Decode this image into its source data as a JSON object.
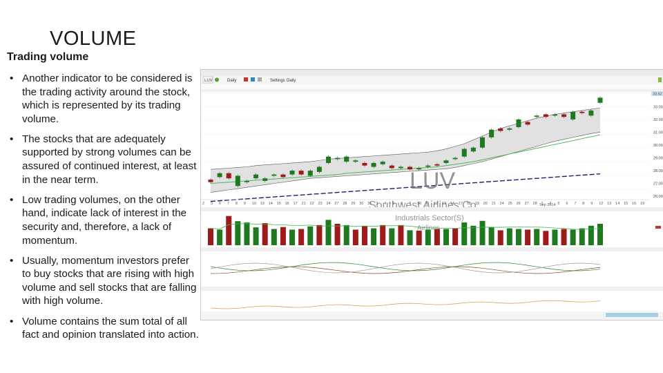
{
  "slide": {
    "title": "VOLUME",
    "subtitle": "Trading volume",
    "bullets": [
      "Another indicator to be considered is the trading activity around the stock, which is represented by its trading volume.",
      "The stocks that are adequately supported by strong volumes can be assured of continued interest, at least in the near term.",
      "Low trading volumes, on the other hand, indicate lack of interest in the security and, therefore, a lack of momentum.",
      "Usually, momentum investors prefer to buy stocks that are rising with high volume and sell stocks that are falling with high volume.",
      "Volume contains the sum total of all fact and opinion translated into action."
    ],
    "bullet_glyph": "•"
  },
  "screenshot": {
    "toolbar": {
      "symbol": "LUV",
      "period": "Daily",
      "settings_label": "Settings",
      "settings_period": "Daily"
    },
    "watermark": {
      "symbol": "LUV",
      "company": "Southwest Airlines Co",
      "sector": "Industrials Sector(S)",
      "industry": "Airlines"
    },
    "price_labels": [
      "34.00",
      "33.00",
      "32.00",
      "31.00",
      "30.00",
      "29.00",
      "28.00",
      "27.00",
      "26.00"
    ],
    "last_price": "33.62",
    "date_ticks": [
      "2",
      "3",
      "6",
      "7",
      "8",
      "9",
      "10",
      "13",
      "14",
      "15",
      "16",
      "17",
      "21",
      "22",
      "23",
      "24",
      "27",
      "28",
      "29",
      "30",
      "31",
      "3",
      "4",
      "5",
      "6",
      "7",
      "10",
      "11",
      "12",
      "13",
      "14",
      "17",
      "18",
      "19",
      "20",
      "21",
      "24",
      "25",
      "26",
      "27",
      "28",
      "1",
      "2",
      "5",
      "6",
      "7",
      "8",
      "9",
      "12",
      "13",
      "14",
      "15",
      "16",
      "19"
    ],
    "month_label": "Sep 2014",
    "colors": {
      "up": "#1f7a1f",
      "down": "#9e1b1b",
      "band_fill": "#d9d9d9",
      "ma_green": "#3cb44b",
      "ma_navy": "#1c1f6b",
      "pink": "#d98aa0",
      "orange": "#e0a050"
    },
    "chart_data": {
      "type": "candlestick",
      "candles": [
        {
          "o": 27.2,
          "c": 27.0
        },
        {
          "o": 27.4,
          "c": 27.7
        },
        {
          "o": 27.7,
          "c": 27.3
        },
        {
          "o": 26.7,
          "c": 27.5
        },
        {
          "o": 27.0,
          "c": 27.1
        },
        {
          "o": 27.3,
          "c": 27.6
        },
        {
          "o": 27.1,
          "c": 27.3
        },
        {
          "o": 27.5,
          "c": 27.6
        },
        {
          "o": 27.6,
          "c": 27.4
        },
        {
          "o": 27.6,
          "c": 27.9
        },
        {
          "o": 27.9,
          "c": 27.6
        },
        {
          "o": 27.5,
          "c": 27.9
        },
        {
          "o": 27.8,
          "c": 28.2
        },
        {
          "o": 28.5,
          "c": 29.0
        },
        {
          "o": 28.8,
          "c": 28.9
        },
        {
          "o": 28.6,
          "c": 29.0
        },
        {
          "o": 28.6,
          "c": 28.7
        },
        {
          "o": 28.5,
          "c": 28.3
        },
        {
          "o": 28.2,
          "c": 28.5
        },
        {
          "o": 28.4,
          "c": 28.6
        },
        {
          "o": 28.3,
          "c": 28.1
        },
        {
          "o": 28.1,
          "c": 28.2
        },
        {
          "o": 28.2,
          "c": 28.0
        },
        {
          "o": 28.0,
          "c": 28.1
        },
        {
          "o": 28.2,
          "c": 28.3
        },
        {
          "o": 28.4,
          "c": 28.3
        },
        {
          "o": 28.5,
          "c": 28.7
        },
        {
          "o": 28.8,
          "c": 28.9
        },
        {
          "o": 29.0,
          "c": 29.6
        },
        {
          "o": 29.4,
          "c": 29.7
        },
        {
          "o": 29.7,
          "c": 30.5
        },
        {
          "o": 30.5,
          "c": 31.1
        },
        {
          "o": 31.2,
          "c": 31.0
        },
        {
          "o": 31.1,
          "c": 31.2
        },
        {
          "o": 31.3,
          "c": 31.9
        },
        {
          "o": 31.7,
          "c": 31.5
        },
        {
          "o": 32.1,
          "c": 32.2
        },
        {
          "o": 32.3,
          "c": 32.1
        },
        {
          "o": 32.2,
          "c": 32.3
        },
        {
          "o": 32.3,
          "c": 32.1
        },
        {
          "o": 31.9,
          "c": 32.5
        },
        {
          "o": 32.5,
          "c": 32.4
        },
        {
          "o": 32.2,
          "c": 32.6
        },
        {
          "o": 33.2,
          "c": 33.6
        }
      ],
      "volume": [
        {
          "v": 0.52,
          "up": false
        },
        {
          "v": 0.48,
          "up": true
        },
        {
          "v": 0.9,
          "up": false
        },
        {
          "v": 0.74,
          "up": true
        },
        {
          "v": 0.7,
          "up": true
        },
        {
          "v": 0.55,
          "up": true
        },
        {
          "v": 0.68,
          "up": false
        },
        {
          "v": 0.5,
          "up": true
        },
        {
          "v": 0.56,
          "up": false
        },
        {
          "v": 0.48,
          "up": true
        },
        {
          "v": 0.5,
          "up": false
        },
        {
          "v": 0.58,
          "up": true
        },
        {
          "v": 0.62,
          "up": false
        },
        {
          "v": 0.78,
          "up": true
        },
        {
          "v": 0.66,
          "up": false
        },
        {
          "v": 0.62,
          "up": true
        },
        {
          "v": 0.48,
          "up": false
        },
        {
          "v": 0.6,
          "up": false
        },
        {
          "v": 0.52,
          "up": true
        },
        {
          "v": 0.62,
          "up": false
        },
        {
          "v": 0.52,
          "up": true
        },
        {
          "v": 0.62,
          "up": false
        },
        {
          "v": 0.46,
          "up": true
        },
        {
          "v": 0.45,
          "up": false
        },
        {
          "v": 0.48,
          "up": true
        },
        {
          "v": 0.5,
          "up": false
        },
        {
          "v": 0.5,
          "up": true
        },
        {
          "v": 0.52,
          "up": false
        },
        {
          "v": 0.7,
          "up": true
        },
        {
          "v": 0.6,
          "up": true
        },
        {
          "v": 0.75,
          "up": true
        },
        {
          "v": 0.56,
          "up": true
        },
        {
          "v": 0.46,
          "up": false
        },
        {
          "v": 0.52,
          "up": true
        },
        {
          "v": 0.5,
          "up": true
        },
        {
          "v": 0.48,
          "up": false
        },
        {
          "v": 0.5,
          "up": true
        },
        {
          "v": 0.44,
          "up": false
        },
        {
          "v": 0.48,
          "up": true
        },
        {
          "v": 0.5,
          "up": false
        },
        {
          "v": 0.48,
          "up": true
        },
        {
          "v": 0.52,
          "up": true
        },
        {
          "v": 0.6,
          "up": true
        },
        {
          "v": 0.66,
          "up": true
        }
      ],
      "ma_green": [
        26.9,
        26.95,
        27.0,
        27.05,
        27.1,
        27.15,
        27.2,
        27.25,
        27.3,
        27.35,
        27.4,
        27.45,
        27.5,
        27.55,
        27.6,
        27.7,
        27.75,
        27.8,
        27.85,
        27.9,
        27.95,
        28.0,
        28.05,
        28.1,
        28.15,
        28.2,
        28.3,
        28.4,
        28.5,
        28.6,
        28.75,
        28.9,
        29.05,
        29.2,
        29.35,
        29.5,
        29.65,
        29.8,
        29.95,
        30.1,
        30.25,
        30.4,
        30.55,
        30.7
      ],
      "ma_navy": [
        25.5,
        25.55,
        25.6,
        25.65,
        25.7,
        25.75,
        25.8,
        25.85,
        25.9,
        25.95,
        26.0,
        26.05,
        26.1,
        26.15,
        26.2,
        26.25,
        26.3,
        26.35,
        26.4,
        26.45,
        26.5,
        26.55,
        26.6,
        26.65,
        26.7,
        26.75,
        26.8,
        26.85,
        26.9,
        26.95,
        27.0,
        27.05,
        27.1,
        27.15,
        27.2,
        27.25,
        27.3,
        27.35,
        27.4,
        27.45,
        27.5,
        27.55,
        27.6,
        27.65
      ],
      "band_upper": [
        28.0,
        28.05,
        28.1,
        28.15,
        28.2,
        28.3,
        28.35,
        28.4,
        28.45,
        28.5,
        28.55,
        28.6,
        28.7,
        28.8,
        28.85,
        28.9,
        28.95,
        29.0,
        29.05,
        29.1,
        29.15,
        29.2,
        29.25,
        29.3,
        29.35,
        29.45,
        29.6,
        29.8,
        30.0,
        30.3,
        30.6,
        30.9,
        31.2,
        31.4,
        31.6,
        31.8,
        32.0,
        32.15,
        32.3,
        32.4,
        32.5,
        32.6,
        32.7,
        32.8
      ],
      "band_lower": [
        26.2,
        26.3,
        26.4,
        26.5,
        26.6,
        26.7,
        26.8,
        26.9,
        27.0,
        27.1,
        27.2,
        27.3,
        27.35,
        27.4,
        27.45,
        27.5,
        27.55,
        27.6,
        27.65,
        27.7,
        27.75,
        27.8,
        27.85,
        27.9,
        27.95,
        28.0,
        28.05,
        28.15,
        28.3,
        28.45,
        28.6,
        28.8,
        29.0,
        29.2,
        29.4,
        29.6,
        29.8,
        30.0,
        30.2,
        30.35,
        30.5,
        30.65,
        30.8,
        30.9
      ],
      "ylim": [
        25.8,
        34.0
      ]
    }
  }
}
